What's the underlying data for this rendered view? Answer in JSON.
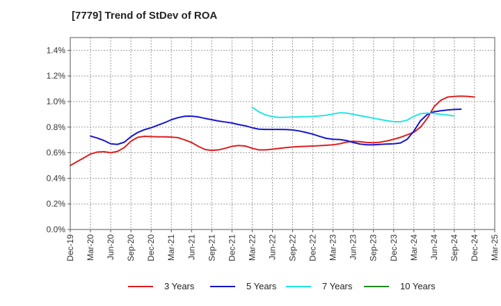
{
  "chart_data": {
    "type": "line",
    "title": "[7779]  Trend of StDev of ROA",
    "xlabel": "",
    "ylabel": "",
    "x_ticks": [
      "Dec-19",
      "Mar-20",
      "Jun-20",
      "Sep-20",
      "Dec-20",
      "Mar-21",
      "Jun-21",
      "Sep-21",
      "Dec-21",
      "Mar-22",
      "Jun-22",
      "Sep-22",
      "Dec-22",
      "Mar-23",
      "Jun-23",
      "Sep-23",
      "Dec-23",
      "Mar-24",
      "Jun-24",
      "Sep-24",
      "Dec-24",
      "Mar-25"
    ],
    "y_ticks": [
      "0.0%",
      "0.2%",
      "0.4%",
      "0.6%",
      "0.8%",
      "1.0%",
      "1.2%",
      "1.4%"
    ],
    "ylim": [
      0,
      1.5
    ],
    "y_unit": "%",
    "grid": true,
    "legend_position": "bottom",
    "series": [
      {
        "name": "3 Years",
        "color": "#dd1c1c",
        "values": [
          [
            0,
            0.5
          ],
          [
            0.33,
            0.53
          ],
          [
            0.67,
            0.56
          ],
          [
            1,
            0.59
          ],
          [
            1.33,
            0.605
          ],
          [
            1.67,
            0.608
          ],
          [
            2,
            0.6
          ],
          [
            2.33,
            0.61
          ],
          [
            2.67,
            0.64
          ],
          [
            3,
            0.69
          ],
          [
            3.33,
            0.72
          ],
          [
            3.67,
            0.728
          ],
          [
            4,
            0.726
          ],
          [
            4.33,
            0.724
          ],
          [
            4.67,
            0.724
          ],
          [
            5,
            0.722
          ],
          [
            5.33,
            0.718
          ],
          [
            5.67,
            0.7
          ],
          [
            6,
            0.68
          ],
          [
            6.33,
            0.65
          ],
          [
            6.67,
            0.625
          ],
          [
            7,
            0.618
          ],
          [
            7.33,
            0.622
          ],
          [
            7.67,
            0.635
          ],
          [
            8,
            0.65
          ],
          [
            8.33,
            0.656
          ],
          [
            8.67,
            0.652
          ],
          [
            9,
            0.635
          ],
          [
            9.33,
            0.622
          ],
          [
            9.67,
            0.622
          ],
          [
            10,
            0.628
          ],
          [
            10.33,
            0.634
          ],
          [
            10.67,
            0.64
          ],
          [
            11,
            0.645
          ],
          [
            11.33,
            0.648
          ],
          [
            11.67,
            0.65
          ],
          [
            12,
            0.652
          ],
          [
            12.33,
            0.655
          ],
          [
            12.67,
            0.658
          ],
          [
            13,
            0.662
          ],
          [
            13.33,
            0.67
          ],
          [
            13.67,
            0.683
          ],
          [
            14,
            0.69
          ],
          [
            14.33,
            0.686
          ],
          [
            14.67,
            0.68
          ],
          [
            15,
            0.678
          ],
          [
            15.33,
            0.682
          ],
          [
            15.67,
            0.692
          ],
          [
            16,
            0.705
          ],
          [
            16.33,
            0.72
          ],
          [
            16.67,
            0.74
          ],
          [
            17,
            0.76
          ],
          [
            17.33,
            0.8
          ],
          [
            17.67,
            0.87
          ],
          [
            18,
            0.96
          ],
          [
            18.33,
            1.01
          ],
          [
            18.67,
            1.035
          ],
          [
            19,
            1.04
          ],
          [
            19.33,
            1.042
          ],
          [
            19.67,
            1.04
          ],
          [
            20,
            1.035
          ]
        ]
      },
      {
        "name": "5 Years",
        "color": "#1414cc",
        "values": [
          [
            1,
            0.73
          ],
          [
            1.33,
            0.715
          ],
          [
            1.67,
            0.695
          ],
          [
            2,
            0.67
          ],
          [
            2.33,
            0.665
          ],
          [
            2.67,
            0.682
          ],
          [
            3,
            0.725
          ],
          [
            3.33,
            0.758
          ],
          [
            3.67,
            0.78
          ],
          [
            4,
            0.795
          ],
          [
            4.33,
            0.815
          ],
          [
            4.67,
            0.835
          ],
          [
            5,
            0.858
          ],
          [
            5.33,
            0.874
          ],
          [
            5.67,
            0.885
          ],
          [
            6,
            0.886
          ],
          [
            6.33,
            0.88
          ],
          [
            6.67,
            0.868
          ],
          [
            7,
            0.858
          ],
          [
            7.33,
            0.848
          ],
          [
            7.67,
            0.84
          ],
          [
            8,
            0.832
          ],
          [
            8.33,
            0.82
          ],
          [
            8.67,
            0.81
          ],
          [
            9,
            0.795
          ],
          [
            9.33,
            0.784
          ],
          [
            9.67,
            0.782
          ],
          [
            10,
            0.782
          ],
          [
            10.33,
            0.782
          ],
          [
            10.67,
            0.781
          ],
          [
            11,
            0.778
          ],
          [
            11.33,
            0.77
          ],
          [
            11.67,
            0.758
          ],
          [
            12,
            0.745
          ],
          [
            12.33,
            0.728
          ],
          [
            12.67,
            0.712
          ],
          [
            13,
            0.705
          ],
          [
            13.33,
            0.703
          ],
          [
            13.67,
            0.695
          ],
          [
            14,
            0.68
          ],
          [
            14.33,
            0.668
          ],
          [
            14.67,
            0.662
          ],
          [
            15,
            0.662
          ],
          [
            15.33,
            0.665
          ],
          [
            15.67,
            0.668
          ],
          [
            16,
            0.67
          ],
          [
            16.33,
            0.676
          ],
          [
            16.67,
            0.705
          ],
          [
            17,
            0.77
          ],
          [
            17.33,
            0.85
          ],
          [
            17.67,
            0.9
          ],
          [
            18,
            0.92
          ],
          [
            18.33,
            0.928
          ],
          [
            18.67,
            0.934
          ],
          [
            19,
            0.938
          ],
          [
            19.33,
            0.94
          ]
        ]
      },
      {
        "name": "7 Years",
        "color": "#22e4e4",
        "values": [
          [
            9,
            0.955
          ],
          [
            9.33,
            0.92
          ],
          [
            9.67,
            0.895
          ],
          [
            10,
            0.882
          ],
          [
            10.33,
            0.876
          ],
          [
            10.67,
            0.877
          ],
          [
            11,
            0.879
          ],
          [
            11.33,
            0.88
          ],
          [
            11.67,
            0.882
          ],
          [
            12,
            0.884
          ],
          [
            12.33,
            0.888
          ],
          [
            12.67,
            0.893
          ],
          [
            13,
            0.903
          ],
          [
            13.33,
            0.912
          ],
          [
            13.67,
            0.91
          ],
          [
            14,
            0.9
          ],
          [
            14.33,
            0.89
          ],
          [
            14.67,
            0.88
          ],
          [
            15,
            0.87
          ],
          [
            15.33,
            0.86
          ],
          [
            15.67,
            0.85
          ],
          [
            16,
            0.843
          ],
          [
            16.33,
            0.842
          ],
          [
            16.67,
            0.855
          ],
          [
            17,
            0.885
          ],
          [
            17.33,
            0.905
          ],
          [
            17.67,
            0.91
          ],
          [
            18,
            0.906
          ],
          [
            18.33,
            0.9
          ],
          [
            18.67,
            0.894
          ],
          [
            19,
            0.888
          ]
        ]
      },
      {
        "name": "10 Years",
        "color": "#1a8a1a",
        "values": []
      }
    ]
  }
}
